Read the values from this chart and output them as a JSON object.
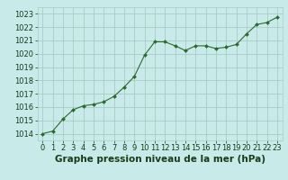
{
  "x": [
    0,
    1,
    2,
    3,
    4,
    5,
    6,
    7,
    8,
    9,
    10,
    11,
    12,
    13,
    14,
    15,
    16,
    17,
    18,
    19,
    20,
    21,
    22,
    23
  ],
  "y": [
    1014.0,
    1014.2,
    1015.1,
    1015.8,
    1016.1,
    1016.2,
    1016.4,
    1016.8,
    1017.5,
    1018.3,
    1019.9,
    1020.9,
    1020.9,
    1020.6,
    1020.25,
    1020.6,
    1020.6,
    1020.4,
    1020.5,
    1020.7,
    1021.5,
    1022.2,
    1022.35,
    1022.75
  ],
  "line_color": "#2d6a2d",
  "marker_color": "#2d6a2d",
  "bg_color": "#c8eae8",
  "grid_color": "#a8ccc8",
  "xlabel": "Graphe pression niveau de la mer (hPa)",
  "xlabel_color": "#1a3a1a",
  "xlabel_fontsize": 7.5,
  "tick_fontsize": 6.0,
  "ylim": [
    1013.5,
    1023.5
  ],
  "yticks": [
    1014,
    1015,
    1016,
    1017,
    1018,
    1019,
    1020,
    1021,
    1022,
    1023
  ],
  "xlim": [
    -0.5,
    23.5
  ],
  "xticks": [
    0,
    1,
    2,
    3,
    4,
    5,
    6,
    7,
    8,
    9,
    10,
    11,
    12,
    13,
    14,
    15,
    16,
    17,
    18,
    19,
    20,
    21,
    22,
    23
  ]
}
